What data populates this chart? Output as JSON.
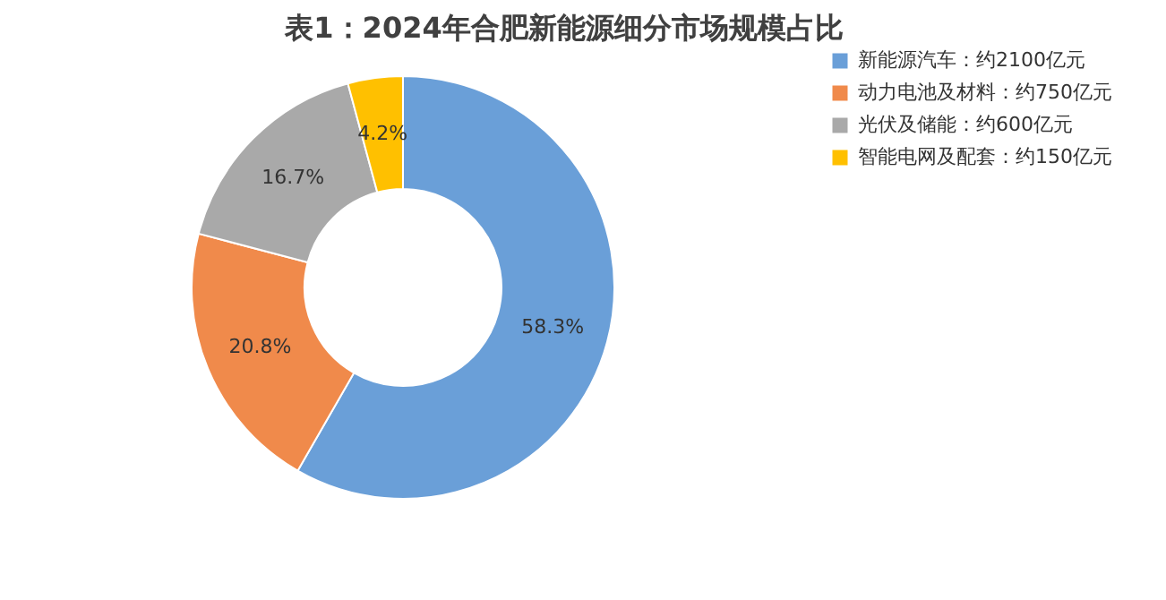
{
  "chart_data": {
    "type": "donut",
    "title": "表1：2024年合肥新能源细分市场规模占比",
    "categories": [
      "新能源汽车：约2100亿元",
      "动力电池及材料：约750亿元",
      "光伏及储能：约600亿元",
      "智能电网及配套：约150亿元"
    ],
    "values": [
      58.3,
      20.8,
      16.7,
      4.2
    ],
    "value_labels": [
      "58.3%",
      "20.8%",
      "16.7%",
      "4.2%"
    ],
    "colors": [
      "#6a9fd8",
      "#f08a4b",
      "#a9a9a9",
      "#ffc000"
    ],
    "legend": "right"
  }
}
